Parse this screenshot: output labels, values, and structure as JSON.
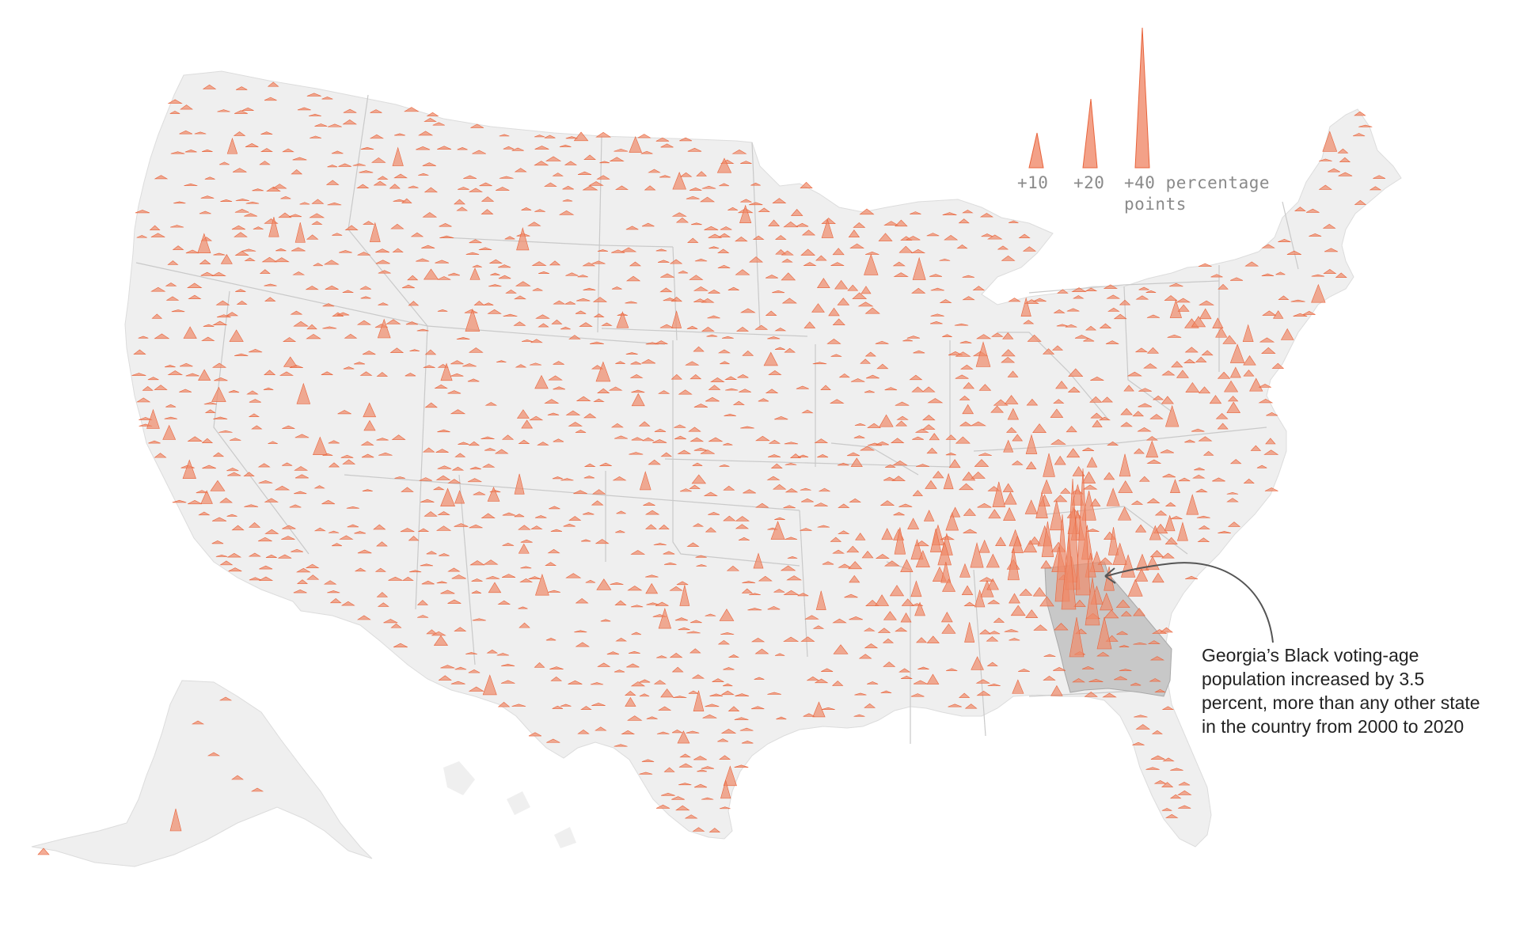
{
  "colors": {
    "land": "#efefef",
    "state_border": "#c9c9c9",
    "highlight_state": "#c8c8c8",
    "spike_fill": "#f08a6a",
    "spike_stroke": "#e8643c",
    "legend_text": "#8a8a8a",
    "annotation_text": "#222222",
    "arrow": "#555555"
  },
  "legend": {
    "labels": [
      "+10",
      "+20",
      "+40 percentage",
      "points"
    ],
    "spike_values": [
      10,
      20,
      40
    ],
    "unit": "percentage points"
  },
  "annotation": {
    "lines": [
      "Georgia’s Black voting-age",
      "population increased by 3.5",
      "percent, more than any other state",
      "in the country from 2000 to 2020"
    ]
  },
  "highlighted_state": "Georgia",
  "spike_icon": "triangle-spike-icon",
  "arrow_icon": "curved-arrow-icon"
}
